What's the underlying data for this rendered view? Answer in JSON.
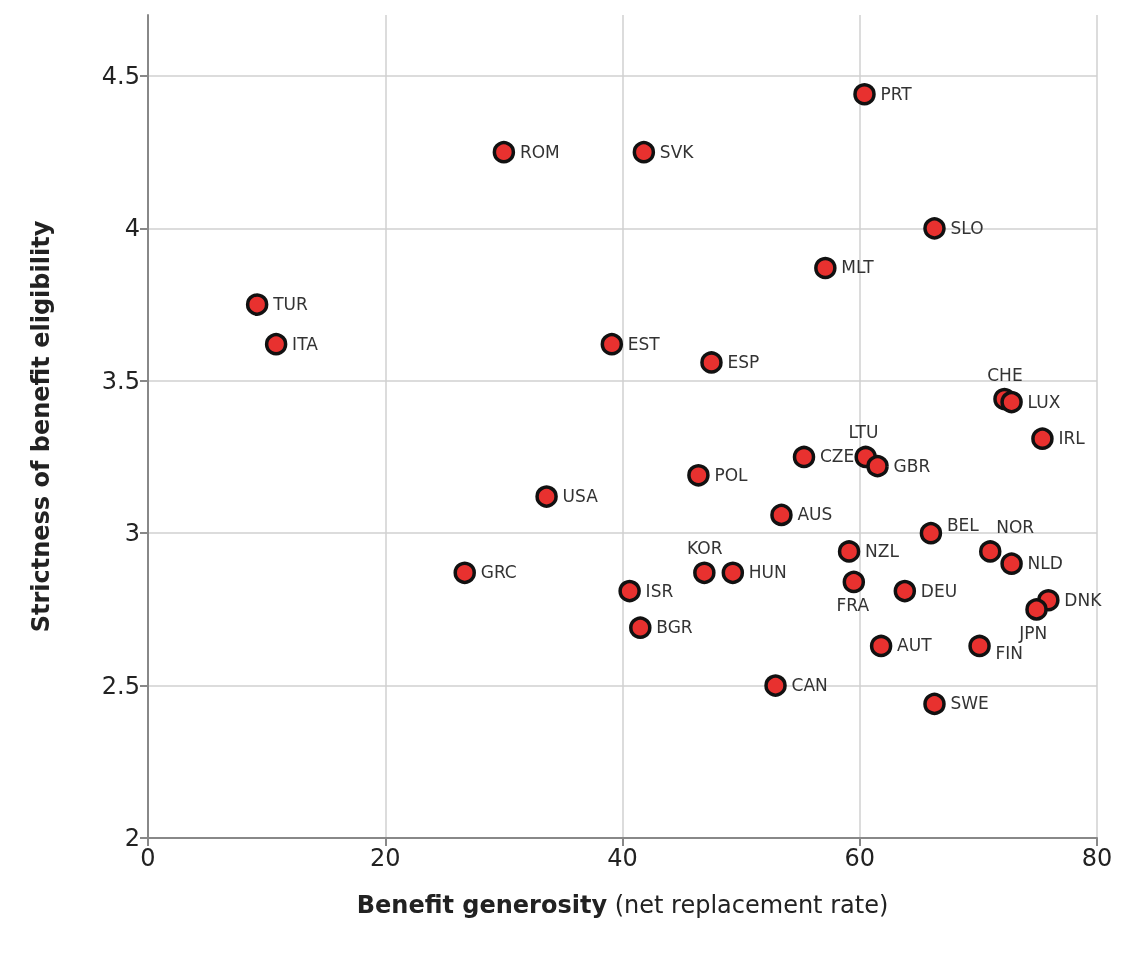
{
  "chart_data": {
    "type": "scatter",
    "xlabel": "Benefit generosity (net replacement rate)",
    "ylabel": "Strictness of benefit eligibility",
    "x": [
      60.4,
      30.0,
      41.8,
      66.3,
      57.1,
      9.2,
      10.8,
      39.1,
      47.5,
      72.2,
      72.8,
      75.4,
      55.3,
      60.5,
      61.5,
      46.4,
      53.4,
      66.0,
      59.1,
      46.9,
      49.3,
      40.6,
      59.5,
      63.8,
      71.0,
      72.8,
      75.9,
      74.9,
      41.5,
      61.8,
      70.1,
      52.9,
      66.3,
      33.6,
      26.7
    ],
    "values": [
      4.44,
      4.25,
      4.25,
      4.0,
      3.87,
      3.75,
      3.62,
      3.62,
      3.56,
      3.44,
      3.43,
      3.31,
      3.25,
      3.25,
      3.22,
      3.19,
      3.06,
      3.0,
      2.94,
      2.87,
      2.87,
      2.81,
      2.84,
      2.81,
      2.94,
      2.9,
      2.78,
      2.75,
      2.69,
      2.63,
      2.63,
      2.5,
      2.44,
      3.12,
      2.87
    ],
    "color": "#e8312f",
    "marker": "circle",
    "annotations": [
      {
        "text": "PRT",
        "x": 60.4,
        "y": 4.44
      },
      {
        "text": "ROM",
        "x": 30.0,
        "y": 4.25
      },
      {
        "text": "SVK",
        "x": 41.8,
        "y": 4.25
      },
      {
        "text": "SLO",
        "x": 66.3,
        "y": 4.0
      },
      {
        "text": "MLT",
        "x": 57.1,
        "y": 3.87
      },
      {
        "text": "TUR",
        "x": 9.2,
        "y": 3.75
      },
      {
        "text": "ITA",
        "x": 10.8,
        "y": 3.62
      },
      {
        "text": "EST",
        "x": 39.1,
        "y": 3.62
      },
      {
        "text": "ESP",
        "x": 47.5,
        "y": 3.56
      },
      {
        "text": "CHE",
        "x": 72.2,
        "y": 3.44
      },
      {
        "text": "LUX",
        "x": 72.8,
        "y": 3.43
      },
      {
        "text": "IRL",
        "x": 75.4,
        "y": 3.31
      },
      {
        "text": "CZE",
        "x": 55.3,
        "y": 3.25
      },
      {
        "text": "LTU",
        "x": 60.5,
        "y": 3.25
      },
      {
        "text": "GBR",
        "x": 61.5,
        "y": 3.22
      },
      {
        "text": "POL",
        "x": 46.4,
        "y": 3.19
      },
      {
        "text": "AUS",
        "x": 53.4,
        "y": 3.06
      },
      {
        "text": "BEL",
        "x": 66.0,
        "y": 3.0
      },
      {
        "text": "NZL",
        "x": 59.1,
        "y": 2.94
      },
      {
        "text": "KOR",
        "x": 46.9,
        "y": 2.87
      },
      {
        "text": "HUN",
        "x": 49.3,
        "y": 2.87
      },
      {
        "text": "ISR",
        "x": 40.6,
        "y": 2.81
      },
      {
        "text": "FRA",
        "x": 59.5,
        "y": 2.84
      },
      {
        "text": "DEU",
        "x": 63.8,
        "y": 2.81
      },
      {
        "text": "NOR",
        "x": 71.0,
        "y": 2.94
      },
      {
        "text": "NLD",
        "x": 72.8,
        "y": 2.9
      },
      {
        "text": "DNK",
        "x": 75.9,
        "y": 2.78
      },
      {
        "text": "JPN",
        "x": 74.9,
        "y": 2.75
      },
      {
        "text": "BGR",
        "x": 41.5,
        "y": 2.69
      },
      {
        "text": "AUT",
        "x": 61.8,
        "y": 2.63
      },
      {
        "text": "FIN",
        "x": 70.1,
        "y": 2.63
      },
      {
        "text": "CAN",
        "x": 52.9,
        "y": 2.5
      },
      {
        "text": "SWE",
        "x": 66.3,
        "y": 2.44
      },
      {
        "text": "USA",
        "x": 33.6,
        "y": 3.12
      },
      {
        "text": "GRC",
        "x": 26.7,
        "y": 2.87
      }
    ],
    "xlim": [
      0,
      80
    ],
    "xticks": [
      0,
      20,
      40,
      60,
      80
    ],
    "ylim": [
      2,
      4.7
    ],
    "yticks": [
      2,
      2.5,
      3,
      3.5,
      4,
      4.5
    ],
    "grid": true
  }
}
